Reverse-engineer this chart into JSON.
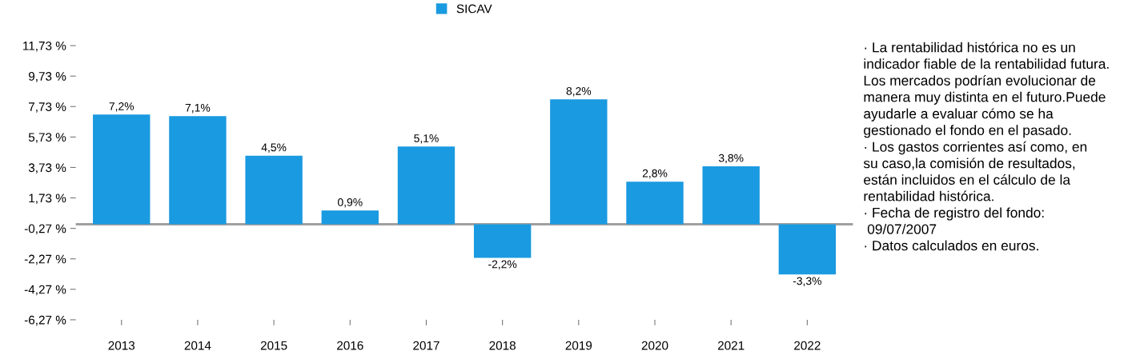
{
  "chart_data": {
    "type": "bar",
    "categories": [
      "2013",
      "2014",
      "2015",
      "2016",
      "2017",
      "2018",
      "2019",
      "2020",
      "2021",
      "2022"
    ],
    "series": [
      {
        "name": "SICAV",
        "color": "#1a9ae0",
        "values": [
          7.2,
          7.1,
          4.5,
          0.9,
          5.1,
          -2.2,
          8.2,
          2.8,
          3.8,
          -3.3
        ],
        "value_labels": [
          "7,2%",
          "7,1%",
          "4,5%",
          "0,9%",
          "5,1%",
          "-2,2%",
          "8,2%",
          "2,8%",
          "3,8%",
          "-3,3%"
        ]
      }
    ],
    "ylim": [
      -6.27,
      11.73
    ],
    "yticks": [
      {
        "value": -6.27,
        "label": "-6,27 %"
      },
      {
        "value": -4.27,
        "label": "-4,27 %"
      },
      {
        "value": -2.27,
        "label": "-2,27 %"
      },
      {
        "value": -0.27,
        "label": "-0,27 %"
      },
      {
        "value": 1.73,
        "label": "1,73 %"
      },
      {
        "value": 3.73,
        "label": "3,73 %"
      },
      {
        "value": 5.73,
        "label": "5,73 %"
      },
      {
        "value": 7.73,
        "label": "7,73 %"
      },
      {
        "value": 9.73,
        "label": "9,73 %"
      },
      {
        "value": 11.73,
        "label": "11,73 %"
      }
    ],
    "ref_lines": [
      {
        "axis": "y",
        "value": 0,
        "color": "#a0a0a0"
      }
    ],
    "legend": "top",
    "grid": false,
    "annotations": [
      "· La rentabilidad histórica no es un\nindicador fiable de la rentabilidad futura.\nLos mercados podrían evolucionar de\nmanera muy distinta en el futuro.Puede\nayudarle a evaluar cómo se ha\ngestionado el fondo en el pasado.\n· Los gastos corrientes así como, en\nsu caso,la comisión de resultados,\nestán incluidos en el cálculo de la\nrentabilidad histórica.\n· Fecha de registro del fondo:\n 09/07/2007\n· Datos calculados en euros."
    ]
  }
}
